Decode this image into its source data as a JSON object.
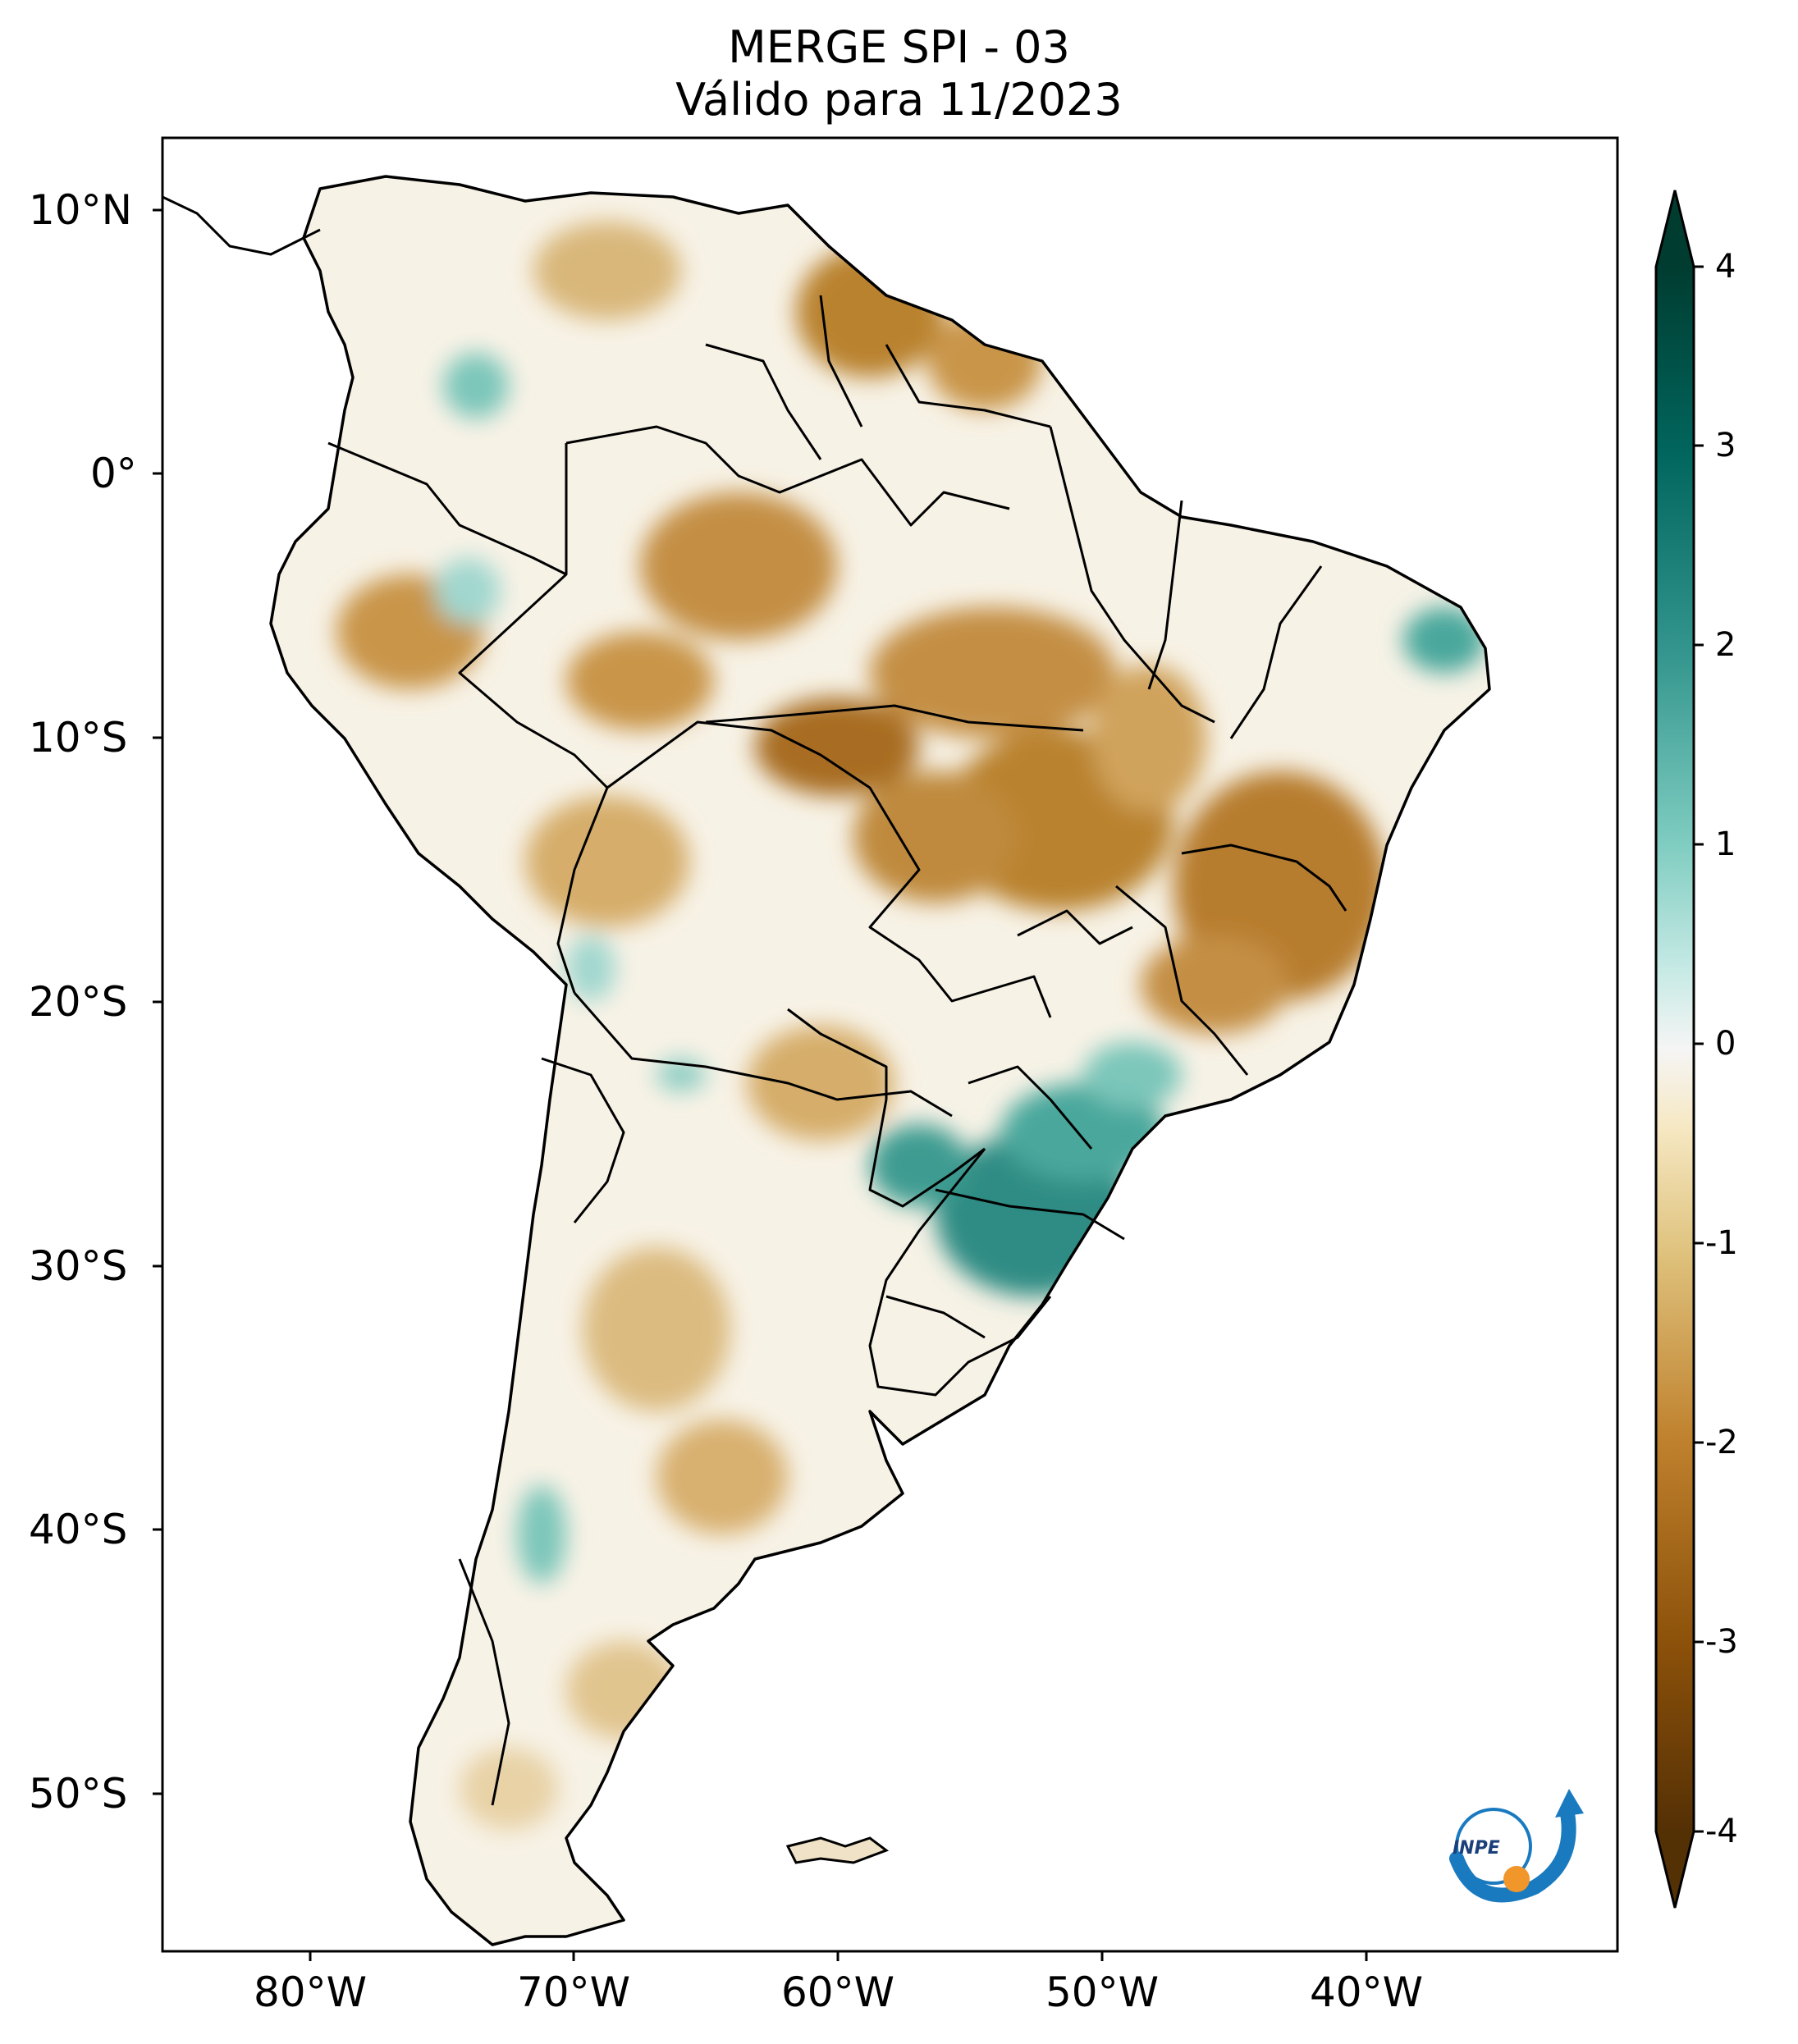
{
  "title": {
    "line1": "MERGE   SPI - 03",
    "line2": "Válido para 11/2023"
  },
  "axes": {
    "lat_ticks": [
      "10°N",
      "0°",
      "10°S",
      "20°S",
      "30°S",
      "40°S",
      "50°S"
    ],
    "lon_ticks": [
      "80°W",
      "70°W",
      "60°W",
      "50°W",
      "40°W"
    ]
  },
  "colorbar": {
    "ticks": [
      "4",
      "3",
      "2",
      "1",
      "0",
      "-1",
      "-2",
      "-3",
      "-4"
    ],
    "min": -4,
    "max": 4,
    "colors": {
      "dry_extreme": "#543005",
      "dry_strong": "#8c510a",
      "dry_moderate": "#bf812d",
      "dry_mild": "#dfc27d",
      "dry_slight": "#f6e8c3",
      "neutral": "#f5f5f5",
      "wet_slight": "#c7eae5",
      "wet_mild": "#80cdc1",
      "wet_moderate": "#35978f",
      "wet_strong": "#01665e",
      "wet_extreme": "#003c30"
    }
  },
  "logo": {
    "text": "INPE"
  }
}
